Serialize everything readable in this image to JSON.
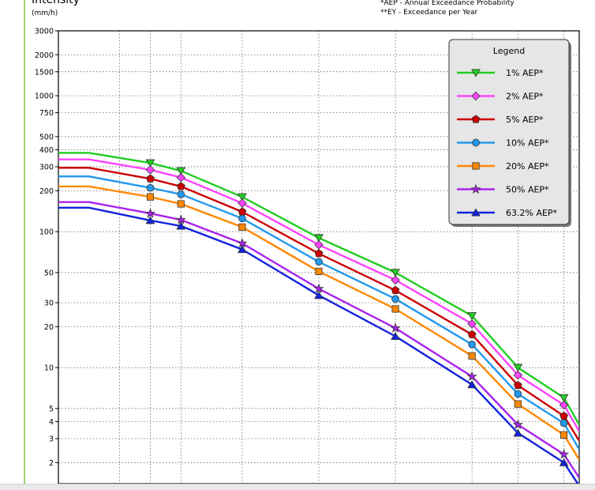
{
  "header": {
    "title": "Intensity",
    "units": "(mm/h)",
    "note_aep": "*AEP - Annual Exceedance Probability",
    "note_ey": "**EY - Exceedance per Year"
  },
  "colors": {
    "accent": "#9ed36a",
    "grid": "#555555",
    "legend_bg": "#e6e6e6",
    "series": [
      "#22cc22",
      "#ff44ff",
      "#cc0000",
      "#2299ee",
      "#ff8800",
      "#aa22ee",
      "#1122dd"
    ]
  },
  "chart_data": {
    "type": "line",
    "title": "Intensity",
    "ylabel": "(mm/h)",
    "xlabel": "",
    "yscale": "log",
    "ylim": [
      1.4,
      3000
    ],
    "yticks": [
      2,
      3,
      4,
      5,
      10,
      20,
      30,
      50,
      100,
      200,
      300,
      400,
      500,
      750,
      1000,
      1500,
      2000,
      3000
    ],
    "x": [
      0,
      2,
      3,
      5,
      7.5,
      10,
      12.5,
      14,
      15.5
    ],
    "xlim": [
      -1,
      16
    ],
    "xgrid": [
      1,
      2,
      3,
      5,
      7.5,
      10,
      12.5,
      14,
      15.5
    ],
    "legend_title": "Legend",
    "legend_position": "top-right",
    "series": [
      {
        "name": "1% AEP*",
        "marker": "triangle-down",
        "values": [
          380,
          320,
          280,
          180,
          90,
          50,
          24,
          10,
          6
        ]
      },
      {
        "name": "2% AEP*",
        "marker": "diamond",
        "values": [
          340,
          285,
          250,
          162,
          80,
          44,
          21,
          8.8,
          5.3
        ]
      },
      {
        "name": "5% AEP*",
        "marker": "pentagon",
        "values": [
          295,
          245,
          215,
          140,
          69,
          37,
          17.5,
          7.4,
          4.4
        ]
      },
      {
        "name": "10% AEP*",
        "marker": "circle",
        "values": [
          255,
          210,
          188,
          125,
          60,
          32,
          14.8,
          6.4,
          3.9
        ]
      },
      {
        "name": "20% AEP*",
        "marker": "square",
        "values": [
          215,
          180,
          160,
          108,
          51,
          27,
          12.2,
          5.4,
          3.2
        ]
      },
      {
        "name": "50% AEP*",
        "marker": "star",
        "values": [
          165,
          136,
          122,
          82,
          38,
          19.5,
          8.6,
          3.8,
          2.3
        ]
      },
      {
        "name": "63.2% AEP*",
        "marker": "triangle-up",
        "values": [
          150,
          121,
          110,
          74,
          34,
          17,
          7.5,
          3.3,
          2.0
        ]
      }
    ],
    "line_end_values": [
      3.8,
      3.4,
      2.9,
      2.5,
      2.1,
      1.55,
      1.35
    ]
  }
}
